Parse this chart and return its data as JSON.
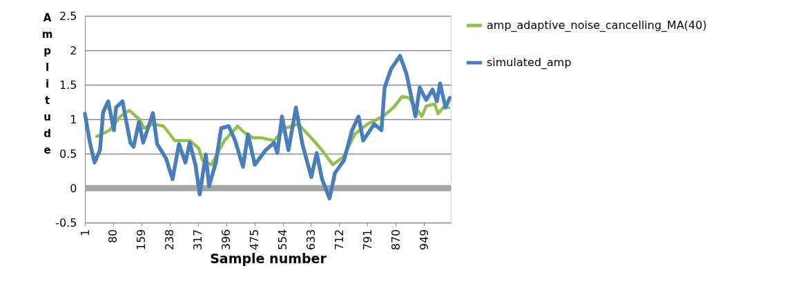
{
  "chart_data": {
    "type": "line",
    "xlabel": "Sample number",
    "ylabel": "Amplitude",
    "xlim": [
      1,
      1024
    ],
    "xticks": [
      1,
      80,
      159,
      238,
      317,
      396,
      475,
      554,
      633,
      712,
      791,
      870,
      949
    ],
    "ylim": [
      -0.5,
      2.5
    ],
    "yticks": [
      -0.5,
      0,
      0.5,
      1,
      1.5,
      2,
      2.5
    ],
    "grid": "y",
    "legend": "right",
    "line_style": "solid",
    "marker": "none",
    "ref_lines": [
      {
        "axis": "y",
        "value": 0,
        "label": null,
        "color": "#a6a6a6"
      }
    ],
    "series": [
      {
        "name": "amp_adaptive_noise_cancelling_MA(40)",
        "color": "#92c050",
        "x": [
          34,
          70,
          100,
          125,
          155,
          166,
          191,
          221,
          252,
          294,
          319,
          330,
          355,
          391,
          428,
          446,
          470,
          494,
          530,
          561,
          597,
          634,
          664,
          694,
          725,
          755,
          791,
          834,
          864,
          888,
          907,
          931,
          943,
          955,
          979,
          988,
          1003,
          1018
        ],
        "values": [
          0.75,
          0.84,
          1.04,
          1.13,
          0.99,
          0.87,
          0.93,
          0.9,
          0.69,
          0.69,
          0.58,
          0.4,
          0.34,
          0.69,
          0.9,
          0.81,
          0.73,
          0.73,
          0.69,
          0.87,
          0.93,
          0.73,
          0.55,
          0.34,
          0.46,
          0.78,
          0.93,
          1.04,
          1.17,
          1.33,
          1.31,
          1.13,
          1.04,
          1.19,
          1.22,
          1.08,
          1.17,
          1.17
        ]
      },
      {
        "name": "simulated_amp",
        "color": "#4a7ebb",
        "x": [
          1,
          15,
          28,
          43,
          52,
          66,
          82,
          88,
          106,
          128,
          137,
          152,
          164,
          191,
          203,
          228,
          246,
          264,
          282,
          294,
          310,
          322,
          339,
          348,
          367,
          382,
          403,
          421,
          443,
          457,
          476,
          506,
          530,
          539,
          552,
          570,
          591,
          609,
          634,
          649,
          664,
          685,
          700,
          725,
          748,
          766,
          779,
          810,
          830,
          839,
          857,
          882,
          900,
          918,
          925,
          937,
          955,
          973,
          985,
          994,
          1009,
          1021
        ],
        "values": [
          1.08,
          0.66,
          0.37,
          0.55,
          1.1,
          1.26,
          0.84,
          1.17,
          1.26,
          0.66,
          0.6,
          0.96,
          0.66,
          1.09,
          0.64,
          0.43,
          0.13,
          0.64,
          0.37,
          0.66,
          0.34,
          -0.09,
          0.49,
          0.03,
          0.37,
          0.87,
          0.9,
          0.69,
          0.31,
          0.78,
          0.34,
          0.55,
          0.66,
          0.51,
          1.04,
          0.55,
          1.17,
          0.64,
          0.16,
          0.51,
          0.13,
          -0.15,
          0.22,
          0.4,
          0.84,
          1.04,
          0.69,
          0.93,
          0.84,
          1.46,
          1.73,
          1.92,
          1.66,
          1.22,
          1.04,
          1.46,
          1.28,
          1.43,
          1.26,
          1.52,
          1.17,
          1.31
        ]
      }
    ]
  }
}
